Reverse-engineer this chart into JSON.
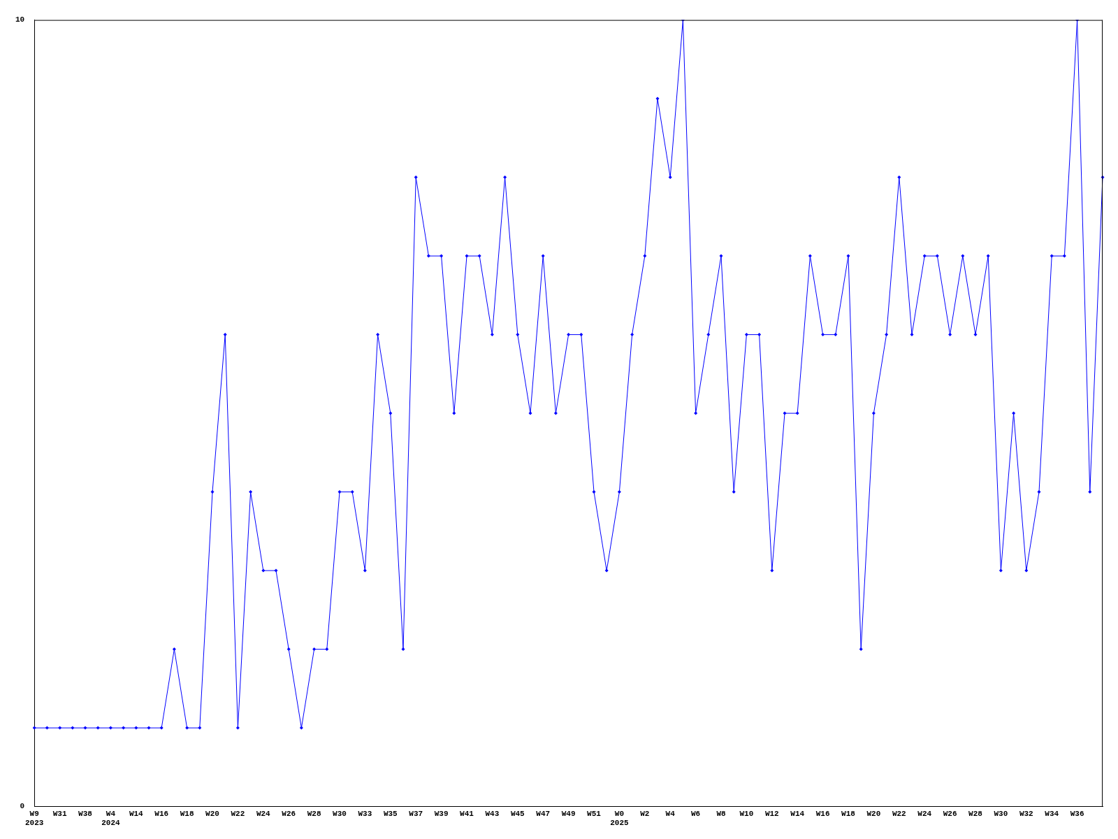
{
  "chart_data": {
    "type": "line",
    "categories": [
      "W9\n2023",
      null,
      "W31",
      null,
      "W38",
      null,
      "W4\n2024",
      null,
      "W14",
      null,
      "W16",
      null,
      "W18",
      null,
      "W20",
      null,
      "W22",
      null,
      "W24",
      null,
      "W26",
      null,
      "W28",
      null,
      "W30",
      null,
      "W33",
      null,
      "W35",
      null,
      "W37",
      null,
      "W39",
      null,
      "W41",
      null,
      "W43",
      null,
      "W45",
      null,
      "W47",
      null,
      "W49",
      null,
      "W51",
      null,
      "W0\n2025",
      null,
      "W2",
      null,
      "W4",
      null,
      "W6",
      null,
      "W8",
      null,
      "W10",
      null,
      "W12",
      null,
      "W14",
      null,
      "W16",
      null,
      "W18",
      null,
      "W20",
      null,
      "W22",
      null,
      "W24",
      null,
      "W26",
      null,
      "W28",
      null,
      "W30",
      null,
      "W32",
      null,
      "W34",
      null,
      "W36",
      null,
      null
    ],
    "values": [
      1,
      1,
      1,
      1,
      1,
      1,
      1,
      1,
      1,
      1,
      1,
      2,
      1,
      1,
      4,
      6,
      1,
      4,
      3,
      3,
      2,
      1,
      2,
      2,
      4,
      4,
      3,
      6,
      5,
      2,
      8,
      7,
      7,
      5,
      7,
      7,
      6,
      8,
      6,
      5,
      7,
      5,
      6,
      6,
      4,
      3,
      4,
      6,
      7,
      9,
      8,
      10,
      5,
      6,
      7,
      4,
      6,
      6,
      3,
      5,
      5,
      7,
      6,
      6,
      7,
      2,
      5,
      6,
      8,
      6,
      7,
      7,
      6,
      7,
      6,
      7,
      3,
      5,
      3,
      4,
      7,
      7,
      10,
      4,
      8
    ],
    "color": "#0000ff",
    "ylim": [
      0,
      10
    ],
    "yticks": [
      0,
      10
    ],
    "grid": false,
    "legend": false,
    "marker": "diamond",
    "line_style": "solid"
  }
}
